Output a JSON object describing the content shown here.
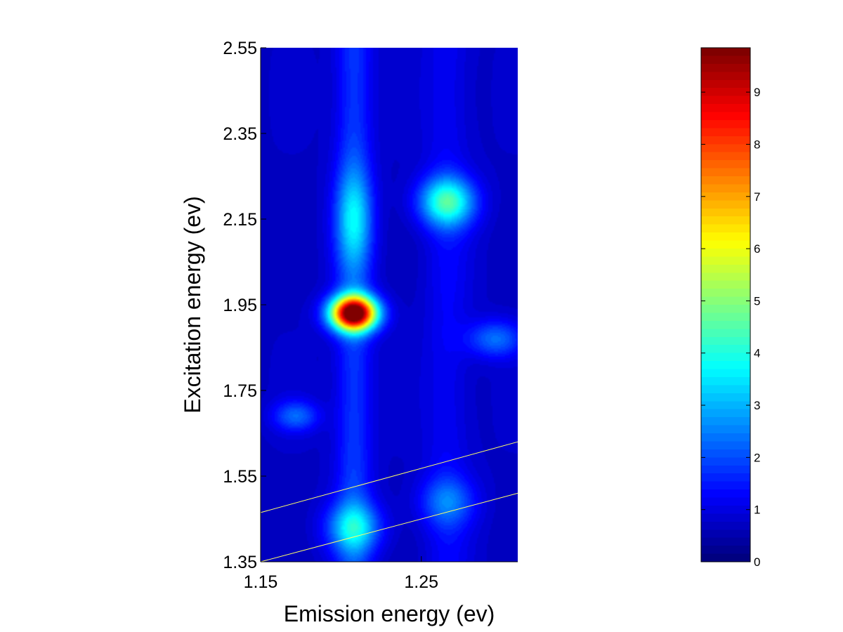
{
  "chart_data": {
    "type": "heatmap",
    "title": "",
    "xlabel": "Emission energy (ev)",
    "ylabel": "Excitation energy (ev)",
    "xlim": [
      1.15,
      1.31
    ],
    "ylim": [
      1.35,
      2.55
    ],
    "x_ticks": [
      1.15,
      1.25
    ],
    "x_tick_labels": [
      "1.15",
      "1.25"
    ],
    "y_ticks": [
      1.35,
      1.55,
      1.75,
      1.95,
      2.15,
      2.35,
      2.55
    ],
    "y_tick_labels": [
      "1.35",
      "1.55",
      "1.75",
      "1.95",
      "2.15",
      "2.35",
      "2.55"
    ],
    "colormap": "jet",
    "colorbar": {
      "range": [
        0,
        9.85
      ],
      "ticks": [
        0,
        1,
        2,
        3,
        4,
        5,
        6,
        7,
        8,
        9
      ],
      "tick_labels": [
        "0",
        "1",
        "2",
        "3",
        "4",
        "5",
        "6",
        "7",
        "8",
        "9"
      ]
    },
    "background_level": 0.9,
    "peaks": [
      {
        "x": 1.208,
        "y": 1.93,
        "intensity": 9.8,
        "sx": 0.01,
        "sy": 0.028
      },
      {
        "x": 1.266,
        "y": 2.19,
        "intensity": 3.4,
        "sx": 0.012,
        "sy": 0.04
      },
      {
        "x": 1.208,
        "y": 2.15,
        "intensity": 1.9,
        "sx": 0.008,
        "sy": 0.08
      },
      {
        "x": 1.208,
        "y": 1.43,
        "intensity": 2.3,
        "sx": 0.012,
        "sy": 0.04
      },
      {
        "x": 1.172,
        "y": 1.69,
        "intensity": 1.5,
        "sx": 0.01,
        "sy": 0.025
      },
      {
        "x": 1.296,
        "y": 1.87,
        "intensity": 1.6,
        "sx": 0.012,
        "sy": 0.03
      },
      {
        "x": 1.266,
        "y": 1.49,
        "intensity": 1.4,
        "sx": 0.012,
        "sy": 0.04
      }
    ],
    "ridges": [
      {
        "x": 1.208,
        "intensity": 1.1,
        "sx": 0.008
      },
      {
        "x": 1.266,
        "intensity": 0.5,
        "sx": 0.01
      }
    ],
    "lines": [
      {
        "name": "",
        "color": "#ffff66",
        "x": [
          1.15,
          1.31
        ],
        "y": [
          1.465,
          1.63
        ]
      },
      {
        "name": "",
        "color": "#ffff66",
        "x": [
          1.15,
          1.31
        ],
        "y": [
          1.35,
          1.51
        ]
      }
    ]
  }
}
